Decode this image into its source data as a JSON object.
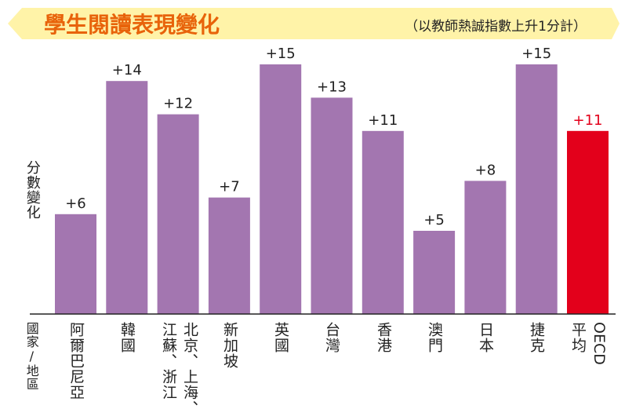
{
  "colors": {
    "banner": "#fff3a8",
    "title": "#e8630a",
    "bar": "#a376b0",
    "highlight_bar": "#e3001b",
    "highlight_label": "#e3001b",
    "text": "#222222",
    "axis": "#222222"
  },
  "chart_data": {
    "type": "bar",
    "title": "學生閱讀表現變化",
    "subtitle": "（以教師熱誠指數上升1分計）",
    "ylabel": "分數變化",
    "xlabel": "國家/地區",
    "ylim": [
      0,
      16
    ],
    "categories": [
      "阿爾巴尼亞",
      "韓國",
      "北京、上海、江蘇、浙江",
      "新加坡",
      "英國",
      "台灣",
      "香港",
      "澳門",
      "日本",
      "捷克",
      "OECD平均"
    ],
    "values": [
      6,
      14,
      12,
      7,
      15,
      13,
      11,
      5,
      8,
      15,
      11
    ],
    "value_labels": [
      "+6",
      "+14",
      "+12",
      "+7",
      "+15",
      "+13",
      "+11",
      "+5",
      "+8",
      "+15",
      "+11"
    ],
    "highlight_index": 10
  },
  "axis_labels": {
    "cat0": "阿爾巴尼亞",
    "cat1": "韓國",
    "cat2_line1": "北京、上海、",
    "cat2_line2": "江蘇、浙江",
    "cat3": "新加坡",
    "cat4": "英國",
    "cat5": "台灣",
    "cat6": "香港",
    "cat7": "澳門",
    "cat8": "日本",
    "cat9": "捷克",
    "cat10_line1": "OECD",
    "cat10_line2": "平均"
  }
}
